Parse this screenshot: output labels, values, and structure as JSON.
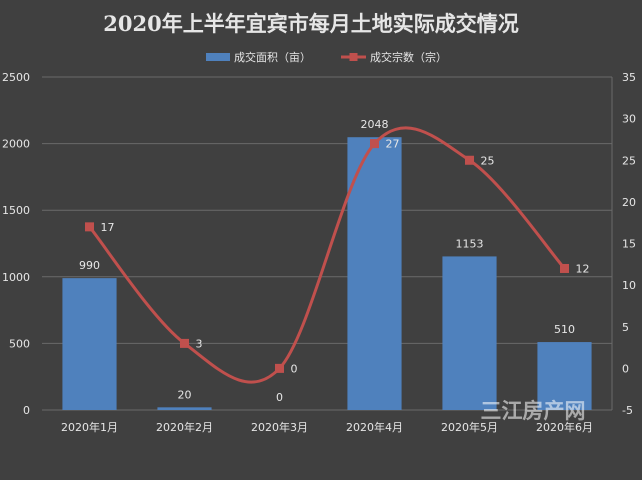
{
  "chart_data": {
    "type": "bar",
    "title": "2020年上半年宜宾市每月土地实际成交情况",
    "categories": [
      "2020年1月",
      "2020年2月",
      "2020年3月",
      "2020年4月",
      "2020年5月",
      "2020年6月"
    ],
    "series": [
      {
        "name": "成交面积（亩）",
        "type": "bar",
        "axis": "left",
        "color": "#4f81bd",
        "values": [
          990,
          20,
          0,
          2048,
          1153,
          510
        ],
        "labels": [
          "990",
          "20",
          "0",
          "2048",
          "1153",
          "510"
        ]
      },
      {
        "name": "成交宗数（宗）",
        "type": "line",
        "axis": "right",
        "smooth": true,
        "color": "#c0504d",
        "values": [
          17,
          3,
          0,
          27,
          25,
          12
        ],
        "labels": [
          "17",
          "3",
          "0",
          "27",
          "25",
          "12"
        ]
      }
    ],
    "y_left": {
      "min": 0,
      "max": 2500,
      "ticks": [
        0,
        500,
        1000,
        1500,
        2000,
        2500
      ],
      "tick_labels": [
        "0",
        "500",
        "1000",
        "1500",
        "2000",
        "2500"
      ]
    },
    "y_right": {
      "min": -5,
      "max": 35,
      "ticks": [
        -5,
        0,
        5,
        10,
        15,
        20,
        25,
        30,
        35
      ],
      "tick_labels": [
        "-5",
        "0",
        "5",
        "10",
        "15",
        "20",
        "25",
        "30",
        "35"
      ]
    },
    "grid": true,
    "legend_position": "top"
  },
  "watermark": "三江房产网",
  "colors": {
    "background": "#404040",
    "text": "#e6e6e6",
    "grid": "#6a6a6a"
  }
}
